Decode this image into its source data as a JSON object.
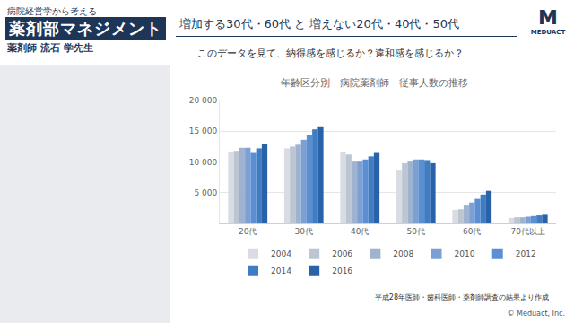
{
  "page": {
    "series_title": "病院経営学から考える",
    "program": "薬剤部マネジメント",
    "lecturer": "薬剤師 流石 学先生",
    "heading": "増加する30代・60代 と 増えない20代・40代・50代",
    "question": "このデータを見て、納得感を感じるか？違和感を感じるか？",
    "logo": "MEDUACT",
    "copyright": "© Meduact, Inc."
  },
  "chart_data": {
    "type": "bar",
    "title": "年齢区分別　病院薬剤師　従事人数の推移",
    "categories": [
      "20代",
      "30代",
      "40代",
      "50代",
      "60代",
      "70代以上"
    ],
    "series": [
      {
        "name": "2004",
        "color": "#d9dde3",
        "values": [
          11700,
          12200,
          11700,
          8600,
          2200,
          900
        ]
      },
      {
        "name": "2006",
        "color": "#bcc6d3",
        "values": [
          11800,
          12500,
          11200,
          9800,
          2300,
          1000
        ]
      },
      {
        "name": "2008",
        "color": "#9fb3cf",
        "values": [
          12300,
          12800,
          10200,
          10200,
          2900,
          1000
        ]
      },
      {
        "name": "2010",
        "color": "#7aa0d4",
        "values": [
          12300,
          13600,
          10200,
          10400,
          3400,
          1100
        ]
      },
      {
        "name": "2012",
        "color": "#5b8fd1",
        "values": [
          11600,
          14400,
          10400,
          10400,
          4000,
          1200
        ]
      },
      {
        "name": "2014",
        "color": "#3e7cc4",
        "values": [
          12200,
          15300,
          10900,
          10300,
          4700,
          1300
        ]
      },
      {
        "name": "2016",
        "color": "#2962a6",
        "values": [
          12900,
          15800,
          11600,
          9800,
          5300,
          1400
        ]
      }
    ],
    "ylim": [
      0,
      20000
    ],
    "yticks": [
      {
        "value": 5000,
        "label": "5 000"
      },
      {
        "value": 10000,
        "label": "10 000"
      },
      {
        "value": 15000,
        "label": "15 000"
      },
      {
        "value": 20000,
        "label": "20 000"
      }
    ],
    "grid": true,
    "legend": "bottom",
    "source": "平成28年医師・歯科医師・薬剤師調査の結果より作成"
  }
}
